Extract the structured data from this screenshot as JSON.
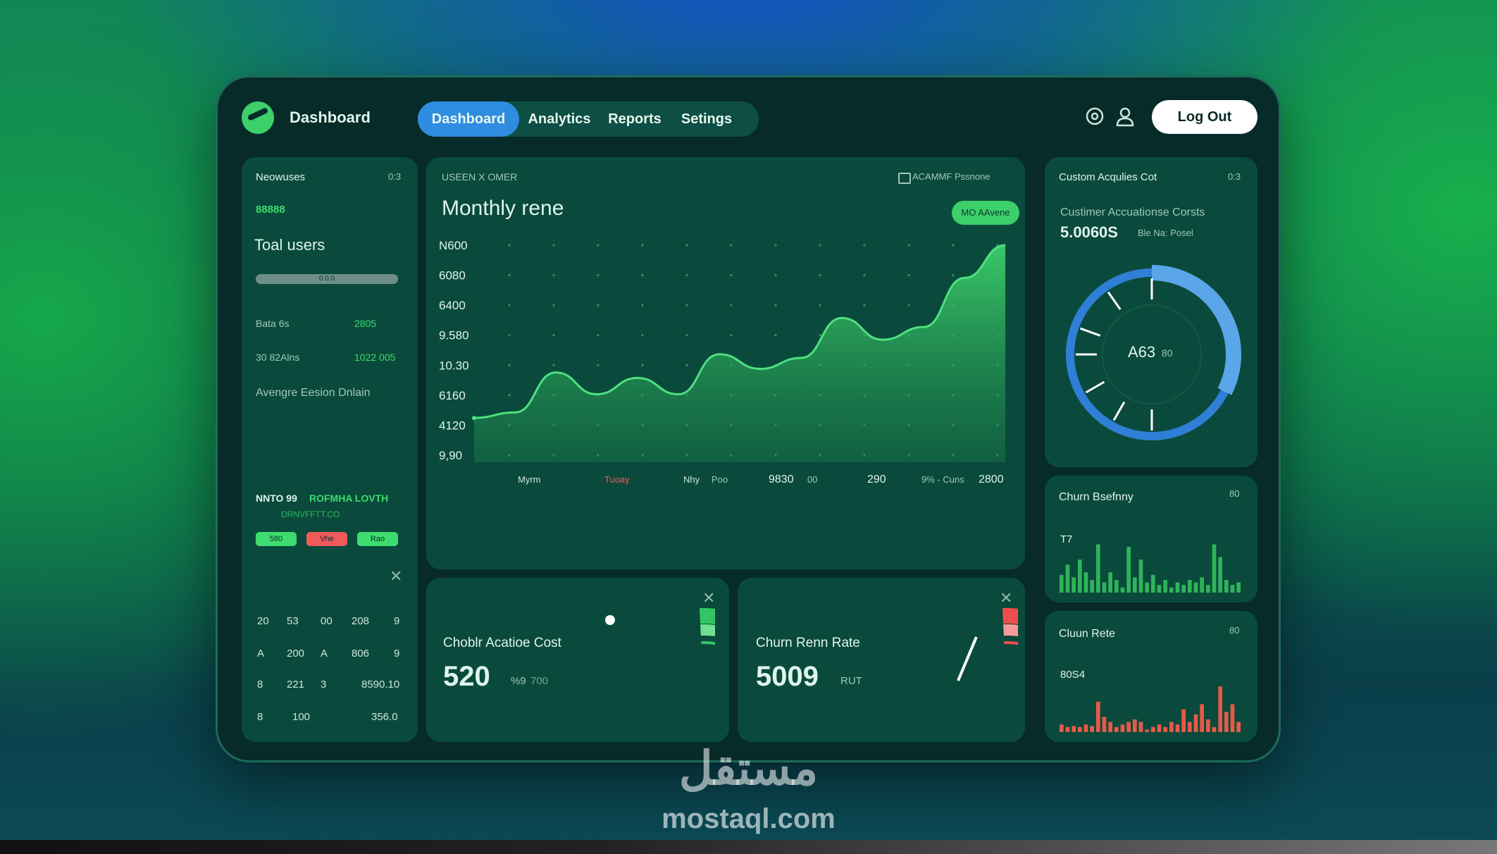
{
  "app": {
    "title": "Dashboard"
  },
  "nav": {
    "tabs": [
      "Dashboard",
      "Analytics",
      "Reports",
      "Setings"
    ],
    "active": 0
  },
  "header": {
    "logout_label": "Log Out",
    "icons": [
      "settings-icon",
      "user-icon"
    ]
  },
  "left_panel": {
    "title": "Neowuses",
    "badge": "0:3",
    "highlight": "88888",
    "total_label": "Toal users",
    "progress_label": "0.0.0",
    "progress": 1.0,
    "stats": [
      {
        "label": "Bata 6s",
        "value": "2805"
      },
      {
        "label": "30 82Alns",
        "value": "1022 005"
      }
    ],
    "avg_label": "Avengre Eesion Dnlain",
    "section_title_a": "NNTO 99",
    "section_title_b": "ROFMHA LOVTH",
    "section_sub": "DRNVFFTT.CO",
    "pills": [
      "580",
      "Vhe",
      "Rao"
    ],
    "table": [
      [
        "20",
        "53",
        "00",
        "208",
        "9"
      ],
      [
        "A",
        "200",
        "A",
        "806",
        "9"
      ],
      [
        "8",
        "221",
        "3",
        "8590.10",
        ""
      ],
      [
        "8",
        "100",
        "",
        "356.0",
        ""
      ]
    ]
  },
  "main_chart": {
    "label": "USEEN X OMER",
    "legend_text": "ACAMMF Pssnone",
    "button": "MO AAvene",
    "title": "Monthly rene",
    "y_ticks": [
      "9,90",
      "4120",
      "6160",
      "10.30",
      "9.580",
      "6400",
      "6080",
      "N600"
    ],
    "x_labels": [
      "Myrm",
      "Tuoay",
      "Nhy",
      "Poo",
      "9830",
      "00",
      "290",
      "9% - Cuns",
      "2800"
    ]
  },
  "chart_data": {
    "type": "area",
    "title": "Monthly rene",
    "x_labels": [
      "Myrm",
      "Tuoay",
      "Nhy",
      "Poo",
      "9830",
      "00",
      "290",
      "9% - Cuns",
      "2800"
    ],
    "series": [
      {
        "values": [
          0.05,
          0.08,
          0.3,
          0.18,
          0.27,
          0.18,
          0.4,
          0.32,
          0.38,
          0.6,
          0.48,
          0.55,
          0.82,
          1.0
        ]
      }
    ],
    "y_ticks_text": [
      "9,90",
      "4120",
      "6160",
      "10.30",
      "9.580",
      "6400",
      "6080",
      "N600"
    ],
    "grid": "dotted"
  },
  "acq_gauge": {
    "title": "Choblr Acatioe Cost",
    "value": "520",
    "unit": "%9",
    "sub": "700",
    "fill": 0.75
  },
  "churn_gauge": {
    "title": "Churn Renn Rate",
    "value": "5009",
    "unit": "RUT",
    "fill": 0.45
  },
  "cac_panel": {
    "title": "Custom Acqulies Cot",
    "badge": "0:3",
    "sub_title": "Custimer Accuationse Corsts",
    "value": "5.0060S",
    "sub_note": "Ble Na: Posel",
    "donut_value": "A63",
    "donut_unit": "80",
    "fill": 0.82
  },
  "churn_bars": {
    "title": "Churn Bsefnny",
    "badge": "80",
    "label": "T7",
    "values": [
      0.35,
      0.55,
      0.3,
      0.65,
      0.4,
      0.25,
      0.95,
      0.2,
      0.4,
      0.25,
      0.1,
      0.9,
      0.3,
      0.65,
      0.2,
      0.35,
      0.15,
      0.25,
      0.1,
      0.2,
      0.15,
      0.25,
      0.2,
      0.3,
      0.15,
      0.95,
      0.7,
      0.25,
      0.15,
      0.2
    ]
  },
  "churn_rate_bars": {
    "title": "Cluun Rete",
    "badge": "80",
    "label": "80S4",
    "values": [
      0.15,
      0.1,
      0.12,
      0.1,
      0.15,
      0.12,
      0.6,
      0.3,
      0.2,
      0.1,
      0.15,
      0.2,
      0.25,
      0.2,
      0.05,
      0.1,
      0.15,
      0.1,
      0.2,
      0.15,
      0.45,
      0.2,
      0.35,
      0.55,
      0.25,
      0.1,
      0.9,
      0.4,
      0.55,
      0.2
    ]
  },
  "watermark": {
    "arabic": "مستقل",
    "domain": "mostaql.com"
  }
}
